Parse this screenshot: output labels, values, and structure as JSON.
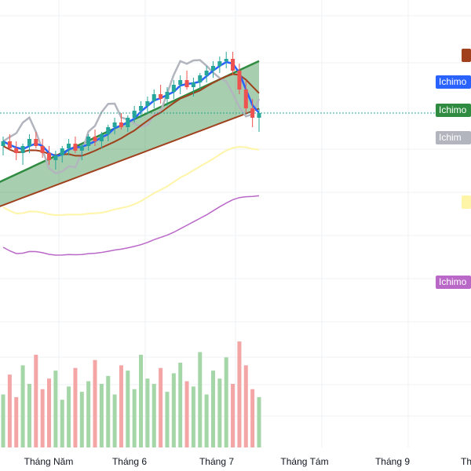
{
  "chart_data": {
    "type": "candlestick",
    "title": "",
    "x_axis": {
      "tick_labels": [
        "Tháng Năm",
        "Tháng 6",
        "Tháng 7",
        "Tháng Tám",
        "Tháng 9",
        "Th"
      ]
    },
    "grid": true,
    "price_range": [
      0,
      100
    ],
    "legend_tags": [
      {
        "label": "",
        "color": "#a0401c"
      },
      {
        "label": "Ichimo",
        "color": "#2962ff"
      },
      {
        "label": "Ichimo",
        "color": "#2e8b3f"
      },
      {
        "label": "Ichim",
        "color": "#b2b5be"
      },
      {
        "label": "",
        "color": "#fff5a8"
      },
      {
        "label": "Ichimo",
        "color": "#ba68c8"
      }
    ],
    "candles": [
      {
        "o": 58,
        "h": 62,
        "l": 54,
        "c": 60
      },
      {
        "o": 60,
        "h": 63,
        "l": 56,
        "c": 57
      },
      {
        "o": 57,
        "h": 60,
        "l": 52,
        "c": 55
      },
      {
        "o": 55,
        "h": 59,
        "l": 50,
        "c": 58
      },
      {
        "o": 58,
        "h": 63,
        "l": 55,
        "c": 61
      },
      {
        "o": 61,
        "h": 64,
        "l": 57,
        "c": 58
      },
      {
        "o": 58,
        "h": 61,
        "l": 53,
        "c": 55
      },
      {
        "o": 55,
        "h": 58,
        "l": 50,
        "c": 52
      },
      {
        "o": 52,
        "h": 56,
        "l": 48,
        "c": 54
      },
      {
        "o": 54,
        "h": 58,
        "l": 51,
        "c": 57
      },
      {
        "o": 57,
        "h": 61,
        "l": 54,
        "c": 59
      },
      {
        "o": 59,
        "h": 62,
        "l": 55,
        "c": 56
      },
      {
        "o": 56,
        "h": 59,
        "l": 52,
        "c": 58
      },
      {
        "o": 58,
        "h": 63,
        "l": 56,
        "c": 62
      },
      {
        "o": 62,
        "h": 65,
        "l": 58,
        "c": 60
      },
      {
        "o": 60,
        "h": 64,
        "l": 57,
        "c": 63
      },
      {
        "o": 63,
        "h": 67,
        "l": 60,
        "c": 66
      },
      {
        "o": 66,
        "h": 70,
        "l": 63,
        "c": 68
      },
      {
        "o": 68,
        "h": 72,
        "l": 65,
        "c": 66
      },
      {
        "o": 66,
        "h": 71,
        "l": 64,
        "c": 70
      },
      {
        "o": 70,
        "h": 75,
        "l": 68,
        "c": 73
      },
      {
        "o": 73,
        "h": 77,
        "l": 70,
        "c": 75
      },
      {
        "o": 75,
        "h": 79,
        "l": 72,
        "c": 77
      },
      {
        "o": 77,
        "h": 82,
        "l": 74,
        "c": 80
      },
      {
        "o": 80,
        "h": 84,
        "l": 76,
        "c": 78
      },
      {
        "o": 78,
        "h": 83,
        "l": 75,
        "c": 81
      },
      {
        "o": 81,
        "h": 86,
        "l": 78,
        "c": 84
      },
      {
        "o": 84,
        "h": 88,
        "l": 80,
        "c": 86
      },
      {
        "o": 86,
        "h": 90,
        "l": 82,
        "c": 83
      },
      {
        "o": 83,
        "h": 87,
        "l": 79,
        "c": 85
      },
      {
        "o": 85,
        "h": 89,
        "l": 82,
        "c": 88
      },
      {
        "o": 88,
        "h": 92,
        "l": 85,
        "c": 90
      },
      {
        "o": 90,
        "h": 94,
        "l": 87,
        "c": 92
      },
      {
        "o": 92,
        "h": 96,
        "l": 89,
        "c": 94
      },
      {
        "o": 94,
        "h": 98,
        "l": 91,
        "c": 95
      },
      {
        "o": 95,
        "h": 98,
        "l": 88,
        "c": 90
      },
      {
        "o": 90,
        "h": 93,
        "l": 80,
        "c": 82
      },
      {
        "o": 82,
        "h": 86,
        "l": 72,
        "c": 74
      },
      {
        "o": 74,
        "h": 78,
        "l": 66,
        "c": 70
      },
      {
        "o": 70,
        "h": 74,
        "l": 64,
        "c": 72
      }
    ],
    "volume": [
      40,
      55,
      38,
      62,
      48,
      70,
      44,
      52,
      58,
      36,
      46,
      60,
      42,
      50,
      66,
      48,
      54,
      40,
      62,
      58,
      44,
      70,
      52,
      48,
      60,
      42,
      56,
      64,
      50,
      46,
      72,
      40,
      58,
      52,
      68,
      48,
      80,
      62,
      44,
      38
    ]
  }
}
